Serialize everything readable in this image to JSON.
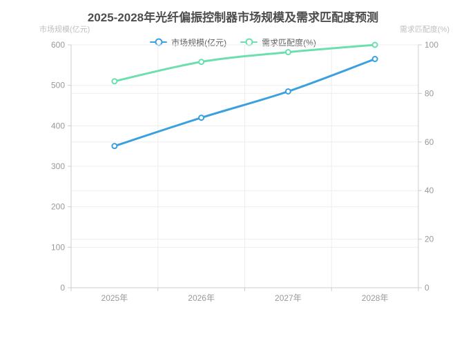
{
  "title": "2025-2028年光纤偏振控制器市场规模及需求匹配度预测",
  "axes": {
    "left_name": "市场规模(亿元)",
    "right_name": "需求匹配度(%)"
  },
  "legend": {
    "items": [
      {
        "label": "市场规模(亿元)",
        "color": "#3ba0de"
      },
      {
        "label": "需求匹配度(%)",
        "color": "#6cdfae"
      }
    ]
  },
  "colors": {
    "market_series": "#3ba0de",
    "demand_series": "#6cdfae",
    "title_text": "#4d4d4d",
    "axis_label": "#999999",
    "axis_name": "#bfbfbf",
    "axis_line": "#cccccc",
    "gridline": "#eeeeee",
    "background": "#ffffff"
  },
  "chart_data": {
    "type": "line",
    "title": "2025-2028年光纤偏振控制器市场规模及需求匹配度预测",
    "categories": [
      "2025年",
      "2026年",
      "2027年",
      "2028年"
    ],
    "series": [
      {
        "name": "市场规模(亿元)",
        "axis": "left",
        "color": "#3ba0de",
        "values": [
          350,
          420,
          485,
          565
        ]
      },
      {
        "name": "需求匹配度(%)",
        "axis": "right",
        "color": "#6cdfae",
        "values": [
          85,
          93,
          97,
          100
        ]
      }
    ],
    "left_axis": {
      "name": "市场规模(亿元)",
      "min": 0,
      "max": 600,
      "step": 100,
      "tick_labels": [
        "0",
        "100",
        "200",
        "300",
        "400",
        "500",
        "600"
      ]
    },
    "right_axis": {
      "name": "需求匹配度(%)",
      "min": 0,
      "max": 100,
      "step": 20,
      "tick_labels": [
        "0",
        "20",
        "40",
        "60",
        "80",
        "100"
      ]
    },
    "grid": true,
    "smooth": true,
    "legend_position": "top"
  }
}
